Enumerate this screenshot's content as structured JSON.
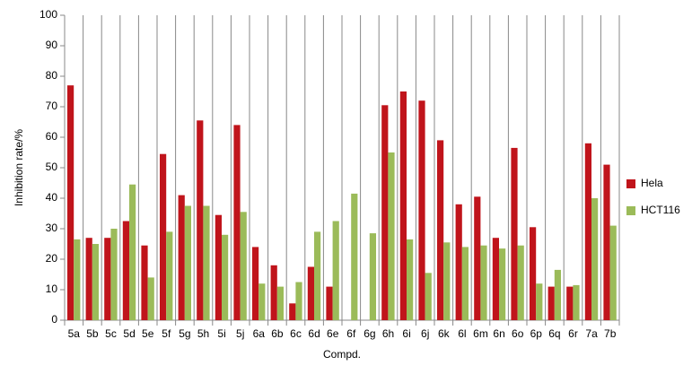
{
  "chart_data": {
    "type": "bar",
    "categories": [
      "5a",
      "5b",
      "5c",
      "5d",
      "5e",
      "5f",
      "5g",
      "5h",
      "5i",
      "5j",
      "6a",
      "6b",
      "6c",
      "6d",
      "6e",
      "6f",
      "6g",
      "6h",
      "6i",
      "6j",
      "6k",
      "6l",
      "6m",
      "6n",
      "6o",
      "6p",
      "6q",
      "6r",
      "7a",
      "7b"
    ],
    "series": [
      {
        "name": "Hela",
        "color": "#c0141b",
        "values": [
          77,
          27,
          27,
          32.5,
          24.5,
          54.5,
          41,
          65.5,
          34.5,
          64,
          24,
          18,
          5.5,
          17.5,
          11,
          null,
          null,
          70.5,
          75,
          72,
          59,
          38,
          40.5,
          27,
          56.5,
          30.5,
          11,
          11,
          58,
          51
        ]
      },
      {
        "name": "HCT116",
        "color": "#9bbb59",
        "values": [
          26.5,
          25,
          30,
          44.5,
          14,
          29,
          37.5,
          37.5,
          28,
          35.5,
          12,
          11,
          12.5,
          29,
          32.5,
          41.5,
          28.5,
          55,
          26.5,
          15.5,
          25.5,
          24,
          24.5,
          23.5,
          24.5,
          12,
          16.5,
          11.5,
          40,
          31
        ]
      }
    ],
    "y_label": "Inhibition rate/%",
    "x_label": "Compd.",
    "ylim": [
      0,
      100
    ],
    "yticks": [
      0,
      10,
      20,
      30,
      40,
      50,
      60,
      70,
      80,
      90,
      100
    ],
    "legend": "right"
  }
}
